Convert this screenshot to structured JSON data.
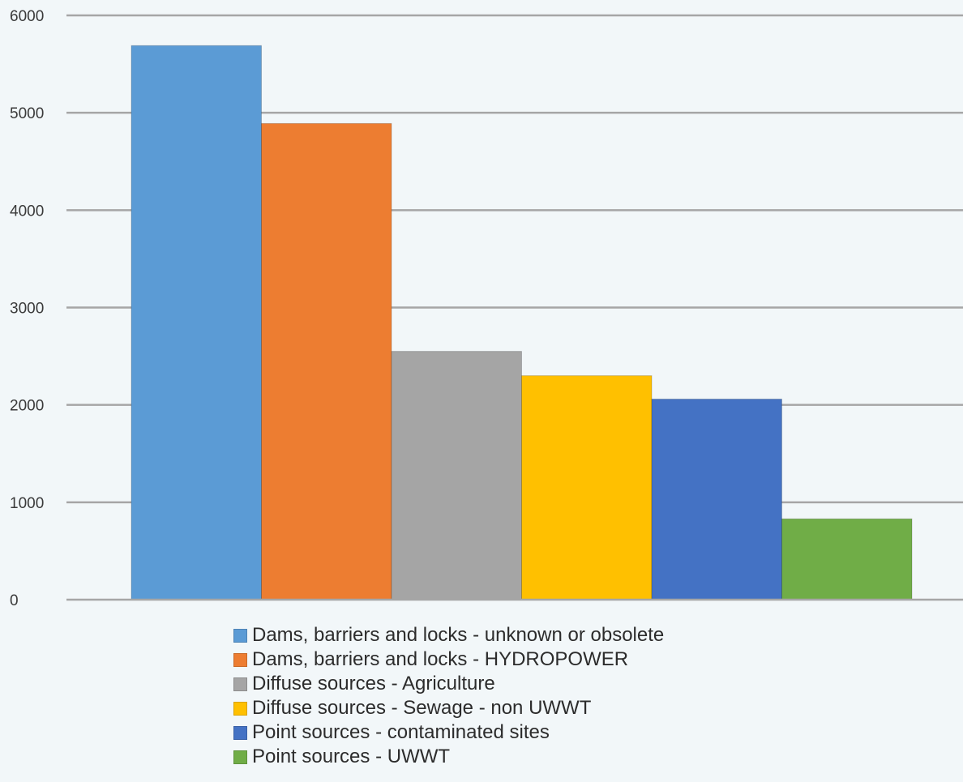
{
  "chart_data": {
    "type": "bar",
    "title": "",
    "xlabel": "",
    "ylabel": "",
    "ylim": [
      0,
      6000
    ],
    "yticks": [
      0,
      1000,
      2000,
      3000,
      4000,
      5000,
      6000
    ],
    "grid": true,
    "legend_position": "bottom",
    "series": [
      {
        "name": "Dams, barriers and locks - unknown or obsolete",
        "value": 5690,
        "color": "#5b9bd5"
      },
      {
        "name": "Dams, barriers and locks - HYDROPOWER",
        "value": 4890,
        "color": "#ed7d31"
      },
      {
        "name": "Diffuse sources - Agriculture",
        "value": 2550,
        "color": "#a5a5a5"
      },
      {
        "name": "Diffuse sources - Sewage - non UWWT",
        "value": 2300,
        "color": "#ffc000"
      },
      {
        "name": "Point sources - contaminated sites",
        "value": 2060,
        "color": "#4472c4"
      },
      {
        "name": "Point sources - UWWT",
        "value": 830,
        "color": "#70ad47"
      }
    ]
  }
}
